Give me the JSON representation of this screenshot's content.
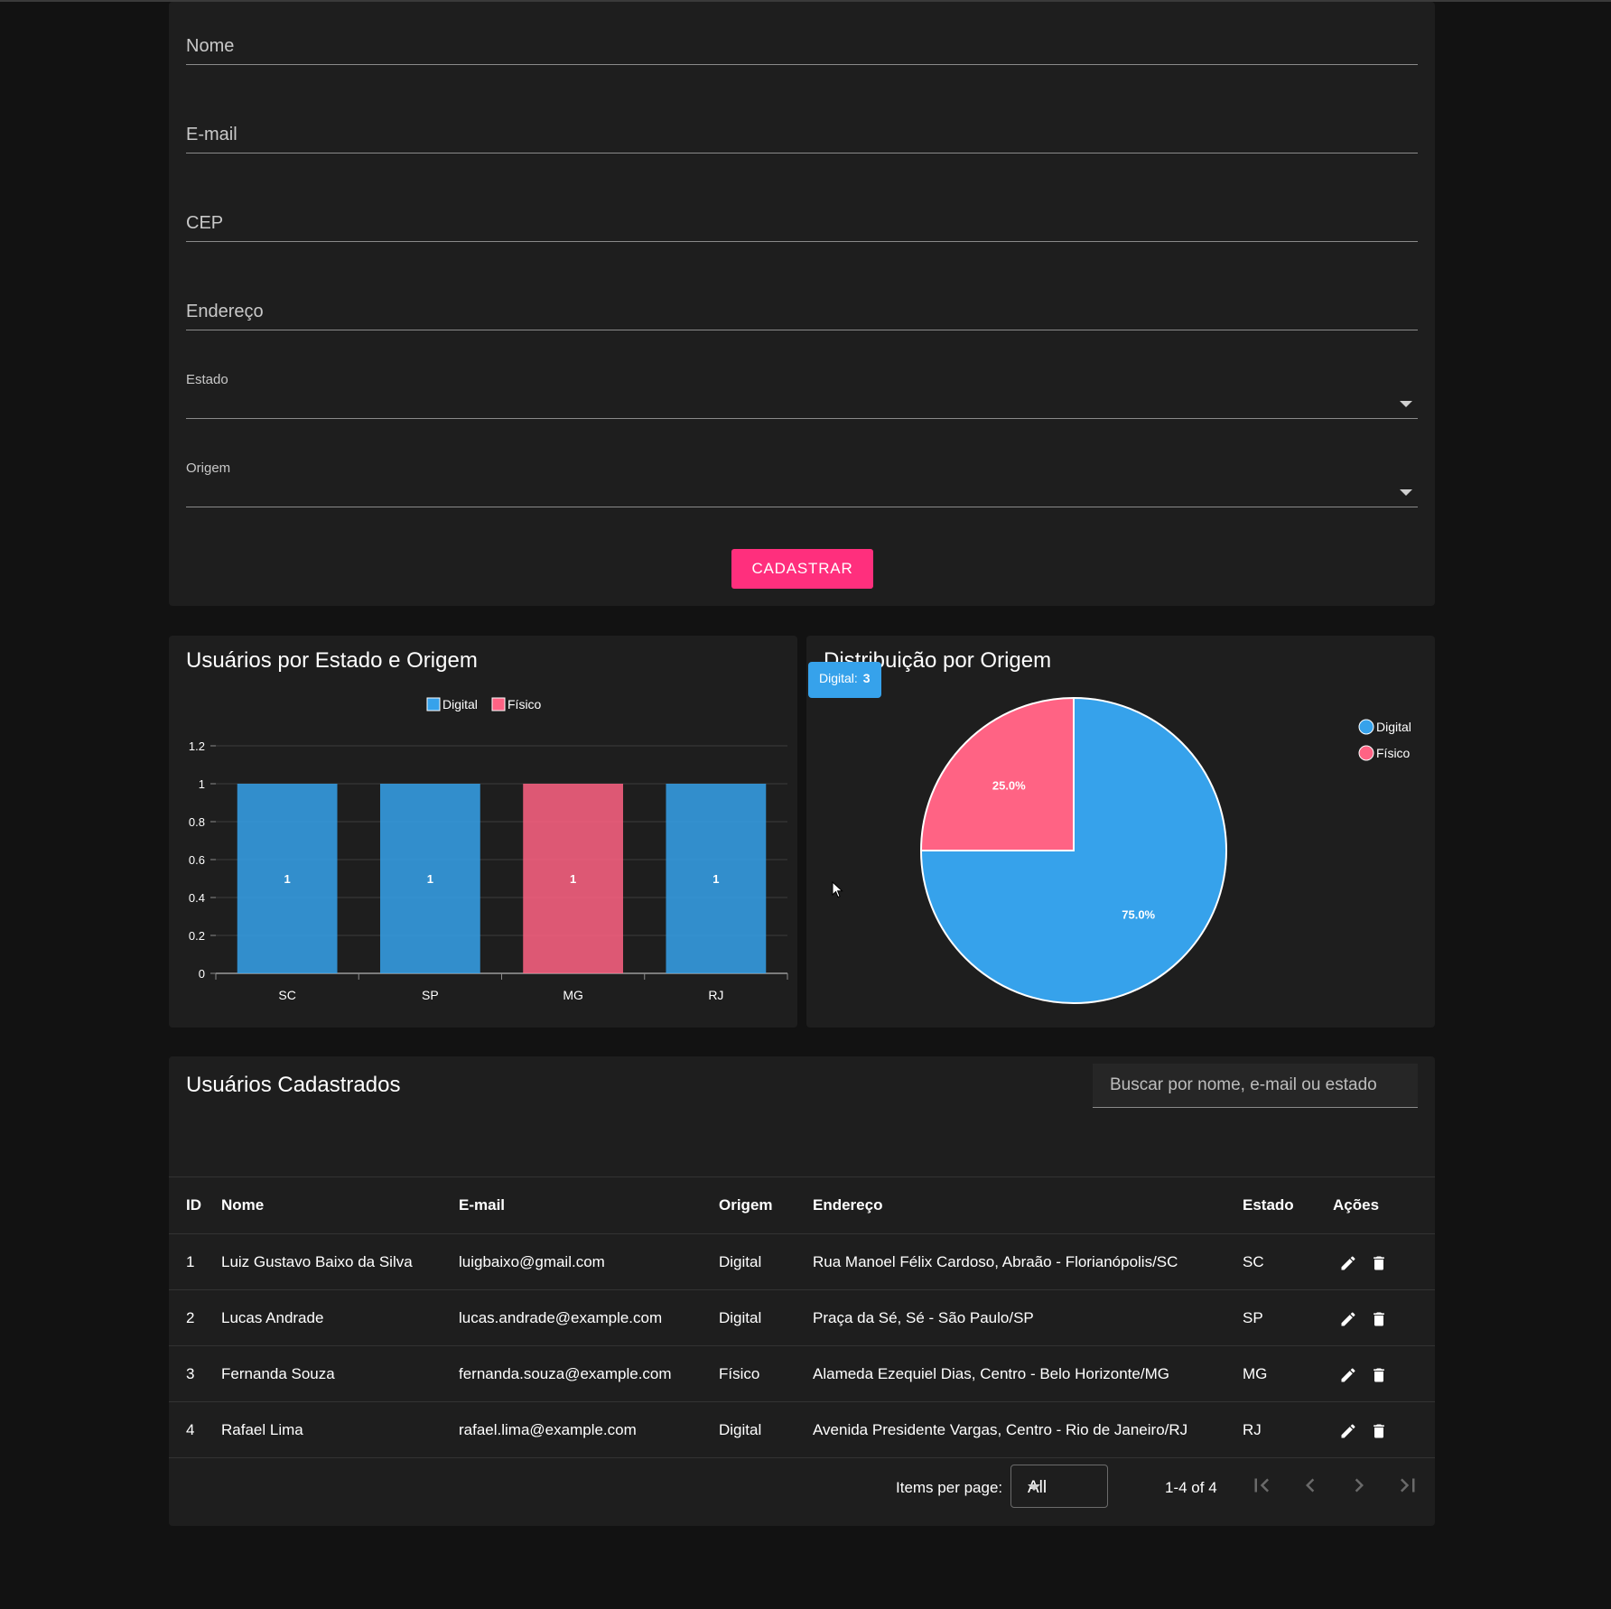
{
  "form": {
    "fields": {
      "nome": "Nome",
      "email": "E-mail",
      "cep": "CEP",
      "endereco": "Endereço",
      "estado": "Estado",
      "origem": "Origem"
    },
    "submit_label": "CADASTRAR",
    "submit_color": "#ff2f7d"
  },
  "bar_card": {
    "title": "Usuários por Estado e Origem"
  },
  "pie_card": {
    "title": "Distribuição por Origem",
    "tooltip": {
      "label": "Digital:",
      "value": "3"
    }
  },
  "chart_data": [
    {
      "type": "bar",
      "title": "Usuários por Estado e Origem",
      "categories": [
        "SC",
        "SP",
        "MG",
        "RJ"
      ],
      "series": [
        {
          "name": "Digital",
          "color": "#36a2eb",
          "values": [
            1,
            1,
            0,
            1
          ]
        },
        {
          "name": "Físico",
          "color": "#ff6384",
          "values": [
            0,
            0,
            1,
            0
          ]
        }
      ],
      "data_labels": [
        "1",
        "1",
        "1",
        "1"
      ],
      "ylim": [
        0,
        1.2
      ],
      "yticks": [
        "0",
        "0.2",
        "0.4",
        "0.6",
        "0.8",
        "1",
        "1.2"
      ],
      "legend": "top-center",
      "grid": true
    },
    {
      "type": "pie",
      "title": "Distribuição por Origem",
      "labels": [
        "Digital",
        "Físico"
      ],
      "values": [
        3,
        1
      ],
      "colors": [
        "#36a2eb",
        "#ff6384"
      ],
      "percent_labels": [
        "75.0%",
        "25.0%"
      ],
      "legend": "right"
    }
  ],
  "table": {
    "title": "Usuários Cadastrados",
    "search_placeholder": "Buscar por nome, e-mail ou estado",
    "headers": [
      "ID",
      "Nome",
      "E-mail",
      "Origem",
      "Endereço",
      "Estado",
      "Ações"
    ],
    "rows": [
      [
        "1",
        "Luiz Gustavo Baixo da Silva",
        "luigbaixo@gmail.com",
        "Digital",
        "Rua Manoel Félix Cardoso, Abraão - Florianópolis/SC",
        "SC"
      ],
      [
        "2",
        "Lucas Andrade",
        "lucas.andrade@example.com",
        "Digital",
        "Praça da Sé, Sé - São Paulo/SP",
        "SP"
      ],
      [
        "3",
        "Fernanda Souza",
        "fernanda.souza@example.com",
        "Físico",
        "Alameda Ezequiel Dias, Centro - Belo Horizonte/MG",
        "MG"
      ],
      [
        "4",
        "Rafael Lima",
        "rafael.lima@example.com",
        "Digital",
        "Avenida Presidente Vargas, Centro - Rio de Janeiro/RJ",
        "RJ"
      ]
    ],
    "row_actions": [
      "pencil-icon",
      "trash-icon"
    ]
  },
  "pagination": {
    "items_per_page_label": "Items per page:",
    "items_per_page_value": "All",
    "range_text": "1-4 of 4",
    "buttons": [
      "first-page-icon",
      "prev-page-icon",
      "next-page-icon",
      "last-page-icon"
    ]
  }
}
